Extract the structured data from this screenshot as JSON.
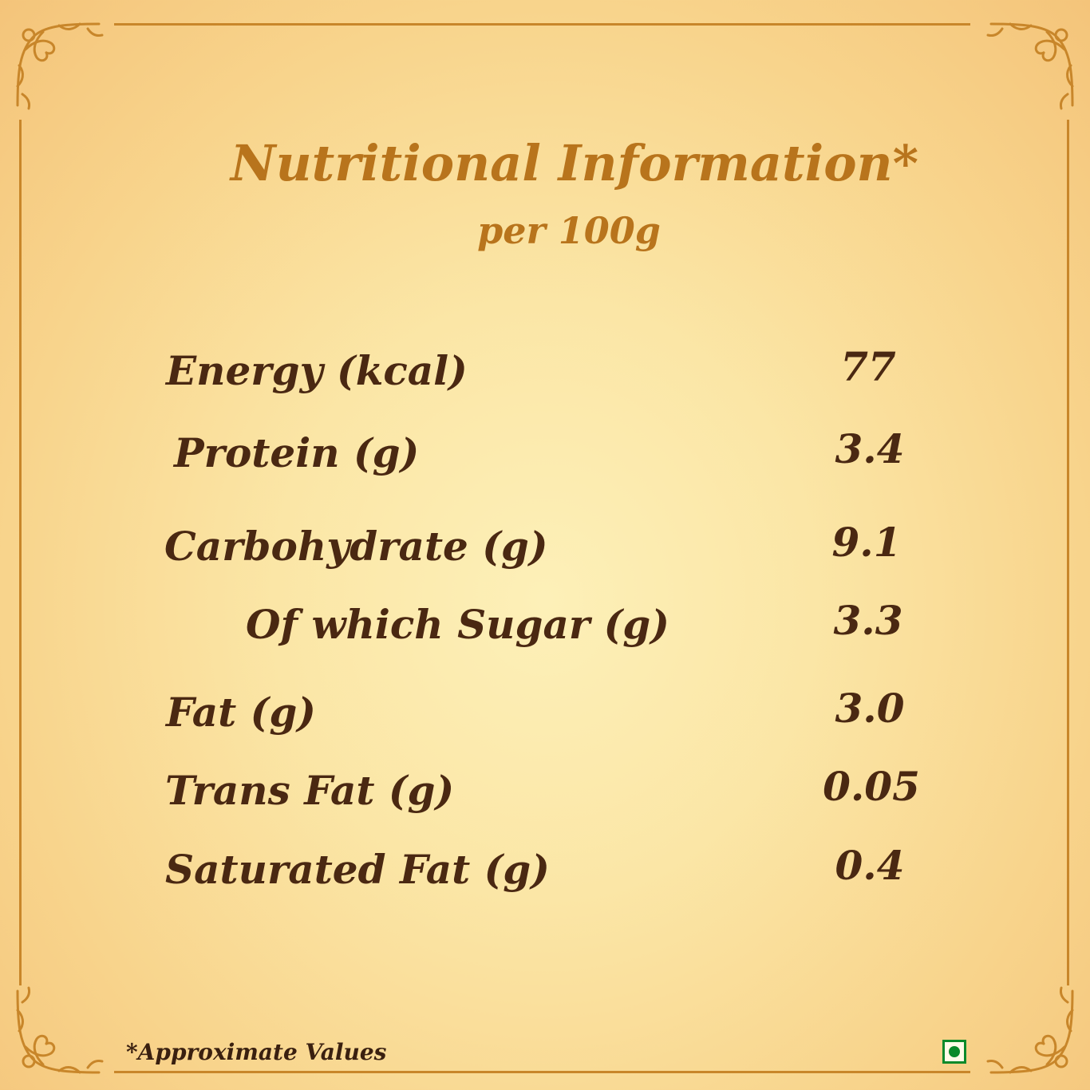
{
  "header": {
    "title": "Nutritional Information*",
    "subtitle": "per 100g"
  },
  "nutrients": [
    {
      "label": "Energy (kcal)",
      "value": "77"
    },
    {
      "label": "Protein (g)",
      "value": "3.4"
    },
    {
      "label": "Carbohydrate (g)",
      "value": "9.1"
    },
    {
      "label": "Of which Sugar (g)",
      "value": "3.3"
    },
    {
      "label": "Fat (g)",
      "value": "3.0"
    },
    {
      "label": "Trans Fat (g)",
      "value": "0.05"
    },
    {
      "label": "Saturated Fat (g)",
      "value": "0.4"
    }
  ],
  "footer": {
    "footnote": "*Approximate Values",
    "veg_mark_icon": "vegetarian-mark-icon"
  },
  "colors": {
    "title": "#b8741c",
    "text": "#4a2812",
    "frame": "#c8862a",
    "veg_green": "#0a8a2a"
  }
}
